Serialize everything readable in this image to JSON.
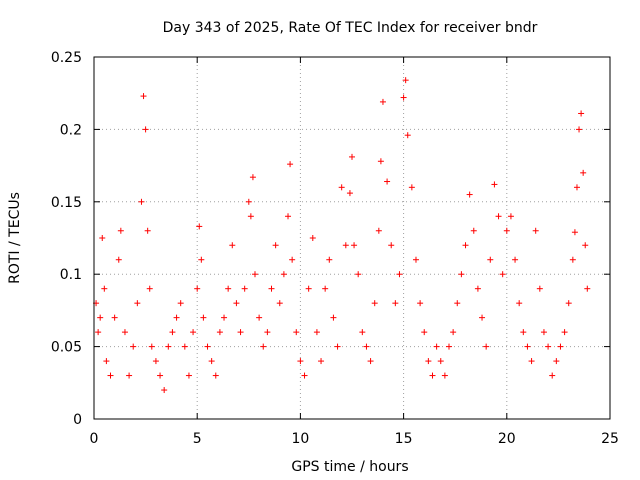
{
  "chart_data": {
    "type": "scatter",
    "title": "Day 343 of 2025, Rate Of TEC Index for receiver bndr",
    "xlabel": "GPS time / hours",
    "ylabel": "ROTI / TECUs",
    "xlim": [
      0,
      25
    ],
    "ylim": [
      0,
      0.25
    ],
    "xticks": [
      "0",
      "5",
      "10",
      "15",
      "20",
      "25"
    ],
    "yticks": [
      "0",
      "0.05",
      "0.1",
      "0.15",
      "0.2",
      "0.25"
    ],
    "grid": true,
    "legend": "none",
    "marker": "plus",
    "color": "#ff0000",
    "series": [
      {
        "x": [
          0.1,
          0.2,
          0.3,
          0.4,
          0.5,
          0.6,
          0.8,
          1.0,
          1.2,
          1.3,
          1.5,
          1.7,
          1.9,
          2.1,
          2.3,
          2.4,
          2.5,
          2.6,
          2.7,
          2.8,
          3.0,
          3.2,
          3.4,
          3.6,
          3.8,
          4.0,
          4.2,
          4.4,
          4.6,
          4.8,
          5.0,
          5.1,
          5.2,
          5.3,
          5.5,
          5.7,
          5.9,
          6.1,
          6.3,
          6.5,
          6.7,
          6.9,
          7.1,
          7.3,
          7.5,
          7.6,
          7.7,
          7.8,
          8.0,
          8.2,
          8.4,
          8.6,
          8.8,
          9.0,
          9.2,
          9.4,
          9.5,
          9.6,
          9.8,
          10.0,
          10.2,
          10.4,
          10.6,
          10.8,
          11.0,
          11.2,
          11.4,
          11.6,
          11.8,
          12.0,
          12.2,
          12.4,
          12.5,
          12.6,
          12.8,
          13.0,
          13.2,
          13.4,
          13.6,
          13.8,
          13.9,
          14.0,
          14.2,
          14.4,
          14.6,
          14.8,
          15.0,
          15.1,
          15.2,
          15.4,
          15.6,
          15.8,
          16.0,
          16.2,
          16.4,
          16.6,
          16.8,
          17.0,
          17.2,
          17.4,
          17.6,
          17.8,
          18.0,
          18.2,
          18.4,
          18.6,
          18.8,
          19.0,
          19.2,
          19.4,
          19.6,
          19.8,
          20.0,
          20.2,
          20.4,
          20.6,
          20.8,
          21.0,
          21.2,
          21.4,
          21.6,
          21.8,
          22.0,
          22.2,
          22.4,
          22.6,
          22.8,
          23.0,
          23.2,
          23.3,
          23.4,
          23.5,
          23.6,
          23.7,
          23.8,
          23.9
        ],
        "y": [
          0.08,
          0.06,
          0.07,
          0.125,
          0.09,
          0.04,
          0.03,
          0.07,
          0.11,
          0.13,
          0.06,
          0.03,
          0.05,
          0.08,
          0.15,
          0.223,
          0.2,
          0.13,
          0.09,
          0.05,
          0.04,
          0.03,
          0.02,
          0.05,
          0.06,
          0.07,
          0.08,
          0.05,
          0.03,
          0.06,
          0.09,
          0.133,
          0.11,
          0.07,
          0.05,
          0.04,
          0.03,
          0.06,
          0.07,
          0.09,
          0.12,
          0.08,
          0.06,
          0.09,
          0.15,
          0.14,
          0.167,
          0.1,
          0.07,
          0.05,
          0.06,
          0.09,
          0.12,
          0.08,
          0.1,
          0.14,
          0.176,
          0.11,
          0.06,
          0.04,
          0.03,
          0.09,
          0.125,
          0.06,
          0.04,
          0.09,
          0.11,
          0.07,
          0.05,
          0.16,
          0.12,
          0.156,
          0.181,
          0.12,
          0.1,
          0.06,
          0.05,
          0.04,
          0.08,
          0.13,
          0.178,
          0.219,
          0.164,
          0.12,
          0.08,
          0.1,
          0.222,
          0.234,
          0.196,
          0.16,
          0.11,
          0.08,
          0.06,
          0.04,
          0.03,
          0.05,
          0.04,
          0.03,
          0.05,
          0.06,
          0.08,
          0.1,
          0.12,
          0.155,
          0.13,
          0.09,
          0.07,
          0.05,
          0.11,
          0.162,
          0.14,
          0.1,
          0.13,
          0.14,
          0.11,
          0.08,
          0.06,
          0.05,
          0.04,
          0.13,
          0.09,
          0.06,
          0.05,
          0.03,
          0.04,
          0.05,
          0.06,
          0.08,
          0.11,
          0.129,
          0.16,
          0.2,
          0.211,
          0.17,
          0.12,
          0.09
        ]
      }
    ]
  }
}
